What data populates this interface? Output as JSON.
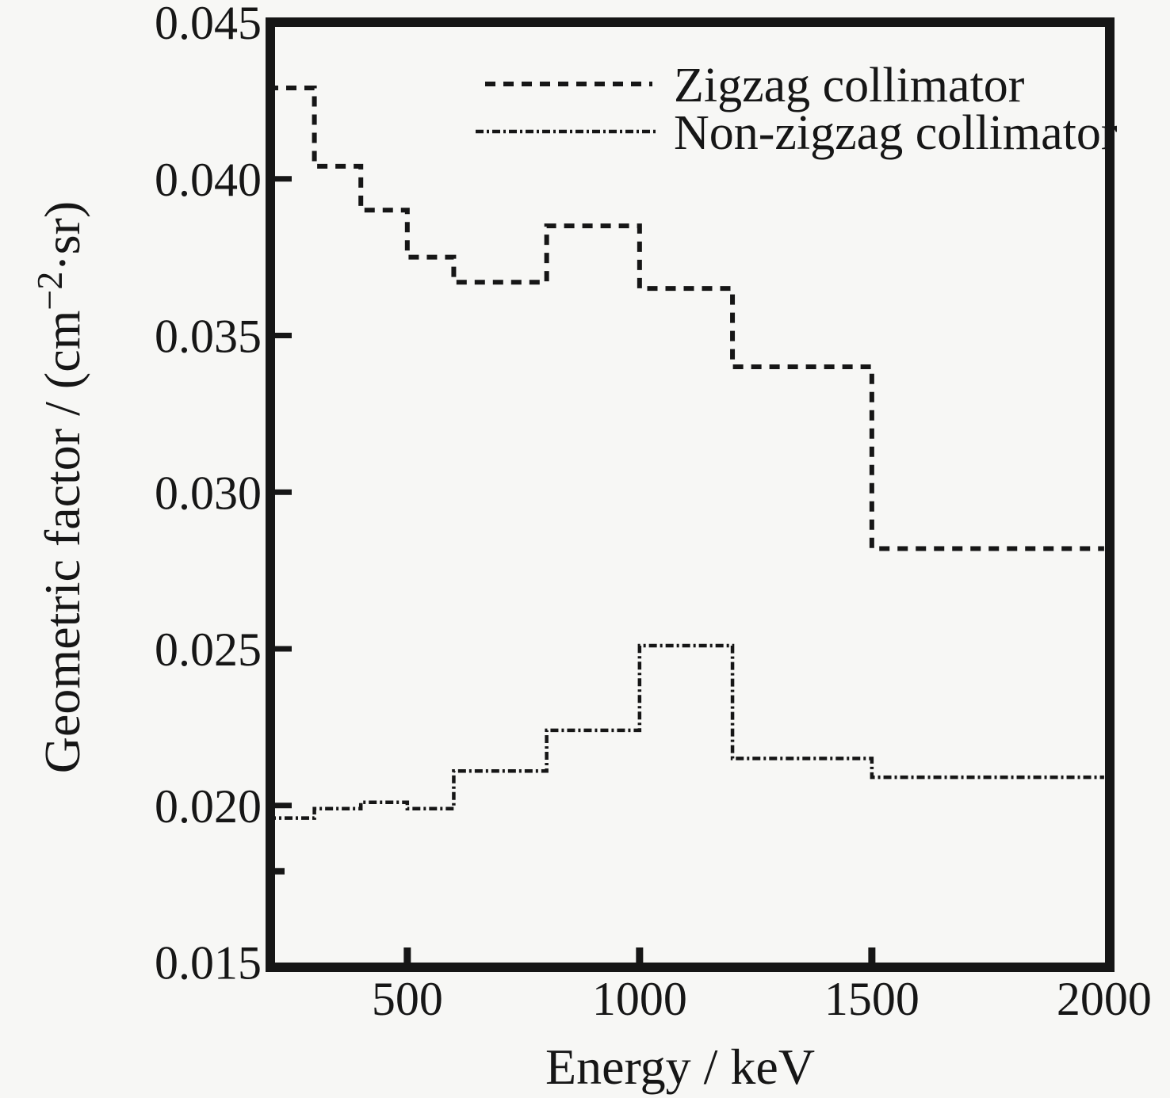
{
  "figure": {
    "background_color": "#f7f7f5",
    "ink_color": "#161616"
  },
  "chart_data": {
    "type": "line",
    "subtype": "step-histogram-outline",
    "title": "",
    "xlabel": "Energy / keV",
    "ylabel": "Geometric factor / (cm−2·sr)",
    "ylabel_parts": {
      "prefix": "Geometric factor / (cm",
      "superscript": "−2",
      "suffix": "·sr)"
    },
    "xlim": [
      200,
      2000
    ],
    "ylim": [
      0.015,
      0.045
    ],
    "grid": false,
    "legend_position": "top-center-inside",
    "x_ticks": [
      500,
      1000,
      1500,
      2000
    ],
    "x_tick_labels": [
      "500",
      "1000",
      "1500",
      "2000"
    ],
    "x_tick_marks": [
      500,
      1000,
      1500
    ],
    "y_ticks": [
      0.045,
      0.04,
      0.035,
      0.03,
      0.025,
      0.02,
      0.015
    ],
    "y_tick_labels": [
      "0.045",
      "0.040",
      "0.035",
      "0.030",
      "0.025",
      "0.020",
      "0.015"
    ],
    "y_minor_ticks": [
      0.0179
    ],
    "bin_edges_keV": [
      200,
      300,
      400,
      500,
      600,
      800,
      1000,
      1200,
      1500,
      2000
    ],
    "series": [
      {
        "name": "Zigzag collimator",
        "line_style": "dashed",
        "dash": "13 10",
        "stroke_width": 6,
        "color": "#161616",
        "values": [
          0.0429,
          0.0404,
          0.039,
          0.0375,
          0.0367,
          0.0385,
          0.0365,
          0.034,
          0.0282
        ]
      },
      {
        "name": "Non-zigzag collimator",
        "line_style": "dash-dot",
        "dash": "10 4 3 4",
        "stroke_width": 4.5,
        "color": "#161616",
        "values": [
          0.0196,
          0.0199,
          0.0201,
          0.0199,
          0.0211,
          0.0224,
          0.0251,
          0.0215,
          0.0209
        ]
      }
    ]
  },
  "legend": {
    "items": [
      {
        "label": "Zigzag collimator"
      },
      {
        "label": "Non-zigzag collimator"
      }
    ]
  }
}
